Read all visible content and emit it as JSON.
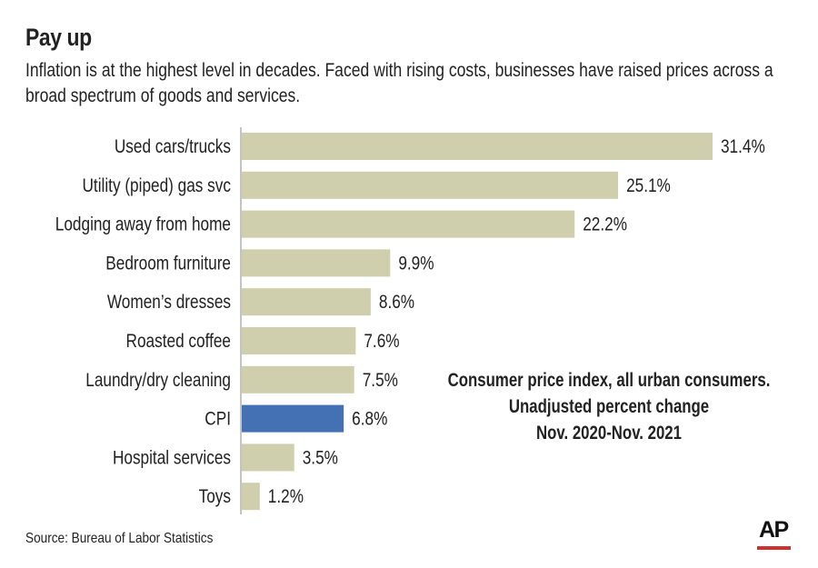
{
  "header": {
    "title": "Pay up",
    "subtitle": "Inflation is at the highest level in decades. Faced with rising costs, businesses have raised prices across a broad spectrum of goods and services."
  },
  "note": {
    "line1": "Consumer price index, all urban consumers.",
    "line2": "Unadjusted percent change",
    "line3": "Nov. 2020-Nov. 2021"
  },
  "footer": {
    "source": "Source: Bureau of Labor Statistics",
    "logo": "AP"
  },
  "colors": {
    "bar_default": "#cfcfae",
    "bar_highlight": "#4470b4",
    "axis": "#888888",
    "logo_accent": "#d0312d"
  },
  "chart_data": {
    "type": "bar",
    "orientation": "horizontal",
    "title": "Pay up",
    "xlabel": "",
    "ylabel": "",
    "unit": "%",
    "xlim": [
      0,
      31.4
    ],
    "grid": false,
    "highlight": "CPI",
    "categories": [
      "Used cars/trucks",
      "Utility (piped) gas svc",
      "Lodging away from home",
      "Bedroom furniture",
      "Women’s dresses",
      "Roasted coffee",
      "Laundry/dry cleaning",
      "CPI",
      "Hospital services",
      "Toys"
    ],
    "values": [
      31.4,
      25.1,
      22.2,
      9.9,
      8.6,
      7.6,
      7.5,
      6.8,
      3.5,
      1.2
    ],
    "value_labels": [
      "31.4%",
      "25.1%",
      "22.2%",
      "9.9%",
      "8.6%",
      "7.6%",
      "7.5%",
      "6.8%",
      "3.5%",
      "1.2%"
    ]
  }
}
